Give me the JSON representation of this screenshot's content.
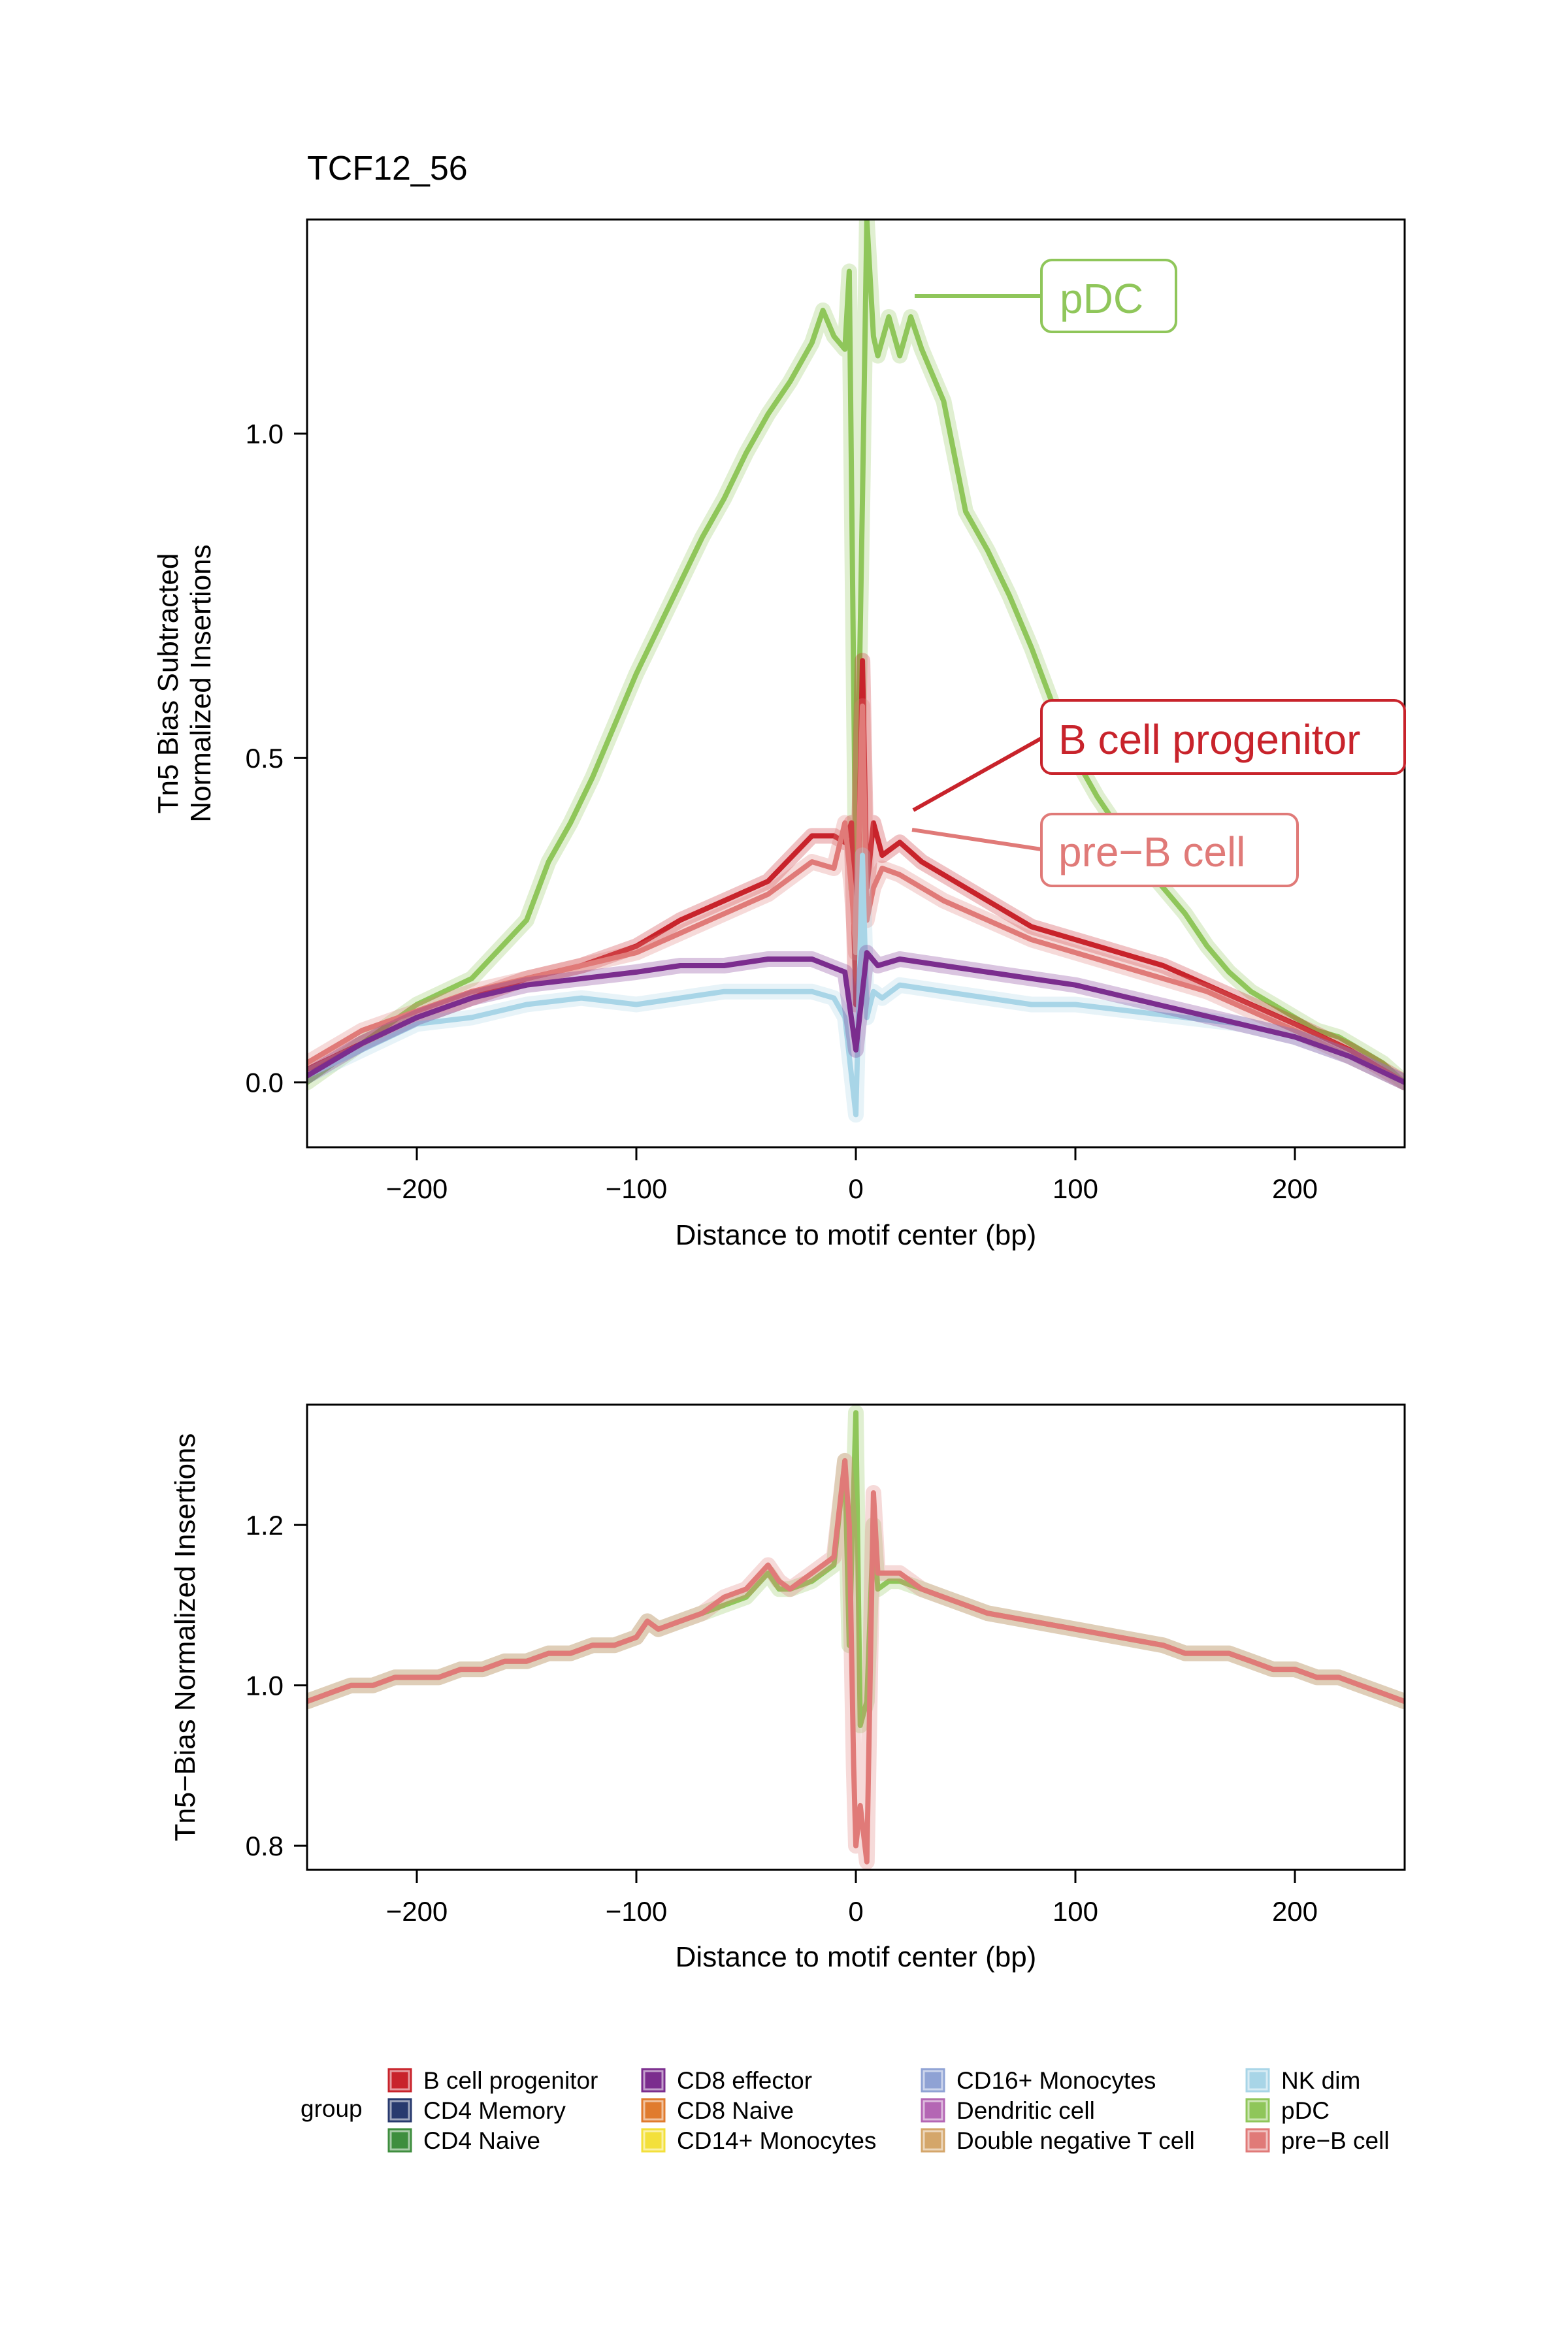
{
  "chart_data": [
    {
      "type": "line",
      "title": "TCF12_56",
      "xlabel": "Distance to motif center (bp)",
      "ylabel_lines": [
        "Tn5 Bias Subtracted",
        "Normalized Insertions"
      ],
      "xlim": [
        -250,
        250
      ],
      "ylim": [
        -0.1,
        1.33
      ],
      "xticks": [
        -200,
        -100,
        0,
        100,
        200
      ],
      "xtick_labels": [
        "−200",
        "−100",
        "0",
        "100",
        "200"
      ],
      "yticks": [
        0.0,
        0.5,
        1.0
      ],
      "ytick_labels": [
        "0.0",
        "0.5",
        "1.0"
      ],
      "grid": false,
      "series": [
        {
          "name": "pDC",
          "color": "#8FC65A",
          "x": [
            -250,
            -225,
            -200,
            -175,
            -150,
            -140,
            -130,
            -120,
            -110,
            -100,
            -90,
            -80,
            -70,
            -60,
            -50,
            -40,
            -30,
            -20,
            -15,
            -10,
            -5,
            -3,
            0,
            3,
            5,
            8,
            10,
            15,
            20,
            25,
            30,
            40,
            50,
            60,
            70,
            80,
            90,
            100,
            110,
            120,
            130,
            140,
            150,
            160,
            170,
            180,
            190,
            200,
            210,
            220,
            230,
            240,
            250
          ],
          "y": [
            0.0,
            0.06,
            0.12,
            0.16,
            0.25,
            0.34,
            0.4,
            0.47,
            0.55,
            0.63,
            0.7,
            0.77,
            0.84,
            0.9,
            0.97,
            1.03,
            1.08,
            1.14,
            1.19,
            1.15,
            1.13,
            1.25,
            0.3,
            0.9,
            1.33,
            1.15,
            1.12,
            1.18,
            1.12,
            1.18,
            1.13,
            1.05,
            0.88,
            0.82,
            0.75,
            0.67,
            0.58,
            0.5,
            0.44,
            0.39,
            0.34,
            0.3,
            0.26,
            0.21,
            0.17,
            0.14,
            0.12,
            0.1,
            0.08,
            0.07,
            0.05,
            0.03,
            0.0
          ]
        },
        {
          "name": "B cell progenitor",
          "color": "#C8232B",
          "x": [
            -250,
            -225,
            -200,
            -175,
            -150,
            -125,
            -100,
            -80,
            -60,
            -40,
            -20,
            -10,
            -5,
            -2,
            0,
            3,
            5,
            8,
            12,
            20,
            30,
            40,
            60,
            80,
            100,
            120,
            140,
            160,
            180,
            200,
            225,
            250
          ],
          "y": [
            0.02,
            0.06,
            0.1,
            0.13,
            0.16,
            0.18,
            0.21,
            0.25,
            0.28,
            0.31,
            0.38,
            0.38,
            0.37,
            0.4,
            0.12,
            0.65,
            0.3,
            0.4,
            0.35,
            0.37,
            0.34,
            0.32,
            0.28,
            0.24,
            0.22,
            0.2,
            0.18,
            0.15,
            0.12,
            0.09,
            0.05,
            0.0
          ]
        },
        {
          "name": "pre−B cell",
          "color": "#E07A78",
          "x": [
            -250,
            -225,
            -200,
            -175,
            -150,
            -125,
            -100,
            -80,
            -60,
            -40,
            -20,
            -10,
            -5,
            -2,
            0,
            3,
            5,
            8,
            12,
            20,
            30,
            40,
            60,
            80,
            100,
            120,
            140,
            160,
            180,
            200,
            225,
            250
          ],
          "y": [
            0.03,
            0.08,
            0.11,
            0.14,
            0.16,
            0.18,
            0.2,
            0.23,
            0.26,
            0.29,
            0.34,
            0.33,
            0.4,
            0.3,
            0.2,
            0.58,
            0.25,
            0.3,
            0.33,
            0.32,
            0.3,
            0.28,
            0.25,
            0.22,
            0.2,
            0.18,
            0.16,
            0.14,
            0.11,
            0.08,
            0.04,
            0.0
          ]
        },
        {
          "name": "NK dim",
          "color": "#A8D5E7",
          "x": [
            -250,
            -225,
            -200,
            -175,
            -150,
            -125,
            -100,
            -80,
            -60,
            -40,
            -20,
            -10,
            -5,
            0,
            3,
            5,
            8,
            12,
            20,
            40,
            60,
            80,
            100,
            125,
            150,
            175,
            200,
            225,
            250
          ],
          "y": [
            0.01,
            0.05,
            0.09,
            0.1,
            0.12,
            0.13,
            0.12,
            0.13,
            0.14,
            0.14,
            0.14,
            0.13,
            0.1,
            -0.05,
            0.35,
            0.1,
            0.14,
            0.13,
            0.15,
            0.14,
            0.13,
            0.12,
            0.12,
            0.11,
            0.1,
            0.09,
            0.07,
            0.04,
            0.0
          ]
        },
        {
          "name": "CD8 effector",
          "color": "#7B2D8E",
          "x": [
            -250,
            -225,
            -200,
            -175,
            -150,
            -125,
            -100,
            -80,
            -60,
            -40,
            -20,
            -5,
            0,
            5,
            10,
            20,
            40,
            60,
            80,
            100,
            125,
            150,
            175,
            200,
            225,
            250
          ],
          "y": [
            0.01,
            0.06,
            0.1,
            0.13,
            0.15,
            0.16,
            0.17,
            0.18,
            0.18,
            0.19,
            0.19,
            0.17,
            0.05,
            0.2,
            0.18,
            0.19,
            0.18,
            0.17,
            0.16,
            0.15,
            0.13,
            0.11,
            0.09,
            0.07,
            0.04,
            0.0
          ]
        }
      ]
    },
    {
      "type": "line",
      "title": "",
      "xlabel": "Distance to motif center (bp)",
      "ylabel": "Tn5−Bias Normalized Insertions",
      "xlim": [
        -250,
        250
      ],
      "ylim": [
        0.77,
        1.35
      ],
      "xticks": [
        -200,
        -100,
        0,
        100,
        200
      ],
      "xtick_labels": [
        "−200",
        "−100",
        "0",
        "100",
        "200"
      ],
      "yticks": [
        0.8,
        1.0,
        1.2
      ],
      "ytick_labels": [
        "0.8",
        "1.0",
        "1.2"
      ],
      "grid": false,
      "series": [
        {
          "name": "pDC",
          "color": "#8FC65A",
          "x": [
            -250,
            -240,
            -230,
            -220,
            -210,
            -200,
            -190,
            -180,
            -170,
            -160,
            -150,
            -140,
            -130,
            -120,
            -110,
            -100,
            -95,
            -90,
            -80,
            -70,
            -60,
            -50,
            -40,
            -35,
            -30,
            -20,
            -10,
            -5,
            -3,
            0,
            2,
            5,
            8,
            10,
            15,
            20,
            30,
            40,
            50,
            60,
            80,
            100,
            120,
            140,
            150,
            160,
            170,
            180,
            190,
            200,
            210,
            220,
            230,
            240,
            250
          ],
          "y": [
            0.98,
            0.99,
            1.0,
            1.0,
            1.01,
            1.01,
            1.01,
            1.02,
            1.02,
            1.03,
            1.03,
            1.04,
            1.04,
            1.05,
            1.05,
            1.06,
            1.08,
            1.07,
            1.08,
            1.09,
            1.1,
            1.11,
            1.14,
            1.12,
            1.12,
            1.13,
            1.15,
            1.28,
            1.05,
            1.34,
            0.95,
            0.98,
            1.2,
            1.12,
            1.13,
            1.13,
            1.12,
            1.11,
            1.1,
            1.09,
            1.08,
            1.07,
            1.06,
            1.05,
            1.04,
            1.04,
            1.04,
            1.03,
            1.02,
            1.02,
            1.01,
            1.01,
            1.0,
            0.99,
            0.98
          ]
        },
        {
          "name": "pre−B cell",
          "color": "#E07A78",
          "x": [
            -250,
            -240,
            -230,
            -220,
            -210,
            -200,
            -190,
            -180,
            -170,
            -160,
            -150,
            -140,
            -130,
            -120,
            -110,
            -100,
            -95,
            -90,
            -80,
            -70,
            -60,
            -50,
            -40,
            -35,
            -30,
            -20,
            -10,
            -5,
            -3,
            -1,
            0,
            2,
            5,
            8,
            10,
            15,
            20,
            30,
            40,
            50,
            60,
            80,
            100,
            120,
            140,
            150,
            160,
            170,
            180,
            190,
            200,
            210,
            220,
            230,
            240,
            250
          ],
          "y": [
            0.98,
            0.99,
            1.0,
            1.0,
            1.01,
            1.01,
            1.01,
            1.02,
            1.02,
            1.03,
            1.03,
            1.04,
            1.04,
            1.05,
            1.05,
            1.06,
            1.08,
            1.07,
            1.08,
            1.09,
            1.11,
            1.12,
            1.15,
            1.13,
            1.12,
            1.14,
            1.16,
            1.28,
            1.2,
            0.9,
            0.8,
            0.85,
            0.78,
            1.24,
            1.14,
            1.14,
            1.14,
            1.12,
            1.11,
            1.1,
            1.09,
            1.08,
            1.07,
            1.06,
            1.05,
            1.04,
            1.04,
            1.04,
            1.03,
            1.02,
            1.02,
            1.01,
            1.01,
            1.0,
            0.99,
            0.98
          ]
        }
      ]
    }
  ],
  "callouts": [
    {
      "label": "pDC",
      "color": "#8FC65A"
    },
    {
      "label": "B cell progenitor",
      "color": "#C8232B"
    },
    {
      "label": "pre−B cell",
      "color": "#E07A78"
    }
  ],
  "legend": {
    "title": "group",
    "items": [
      {
        "label": "B cell progenitor",
        "color": "#C8232B"
      },
      {
        "label": "CD4 Memory",
        "color": "#283A6E"
      },
      {
        "label": "CD4 Naive",
        "color": "#3E8E3E"
      },
      {
        "label": "CD8 effector",
        "color": "#7B2D8E"
      },
      {
        "label": "CD8 Naive",
        "color": "#E07B2E"
      },
      {
        "label": "CD14+ Monocytes",
        "color": "#F3E03B"
      },
      {
        "label": "CD16+ Monocytes",
        "color": "#8FA2D4"
      },
      {
        "label": "Dendritic cell",
        "color": "#B466B4"
      },
      {
        "label": "Double negative T cell",
        "color": "#D4A66A"
      },
      {
        "label": "NK dim",
        "color": "#A8D5E7"
      },
      {
        "label": "pDC",
        "color": "#8FC65A"
      },
      {
        "label": "pre−B cell",
        "color": "#E07A78"
      }
    ]
  }
}
